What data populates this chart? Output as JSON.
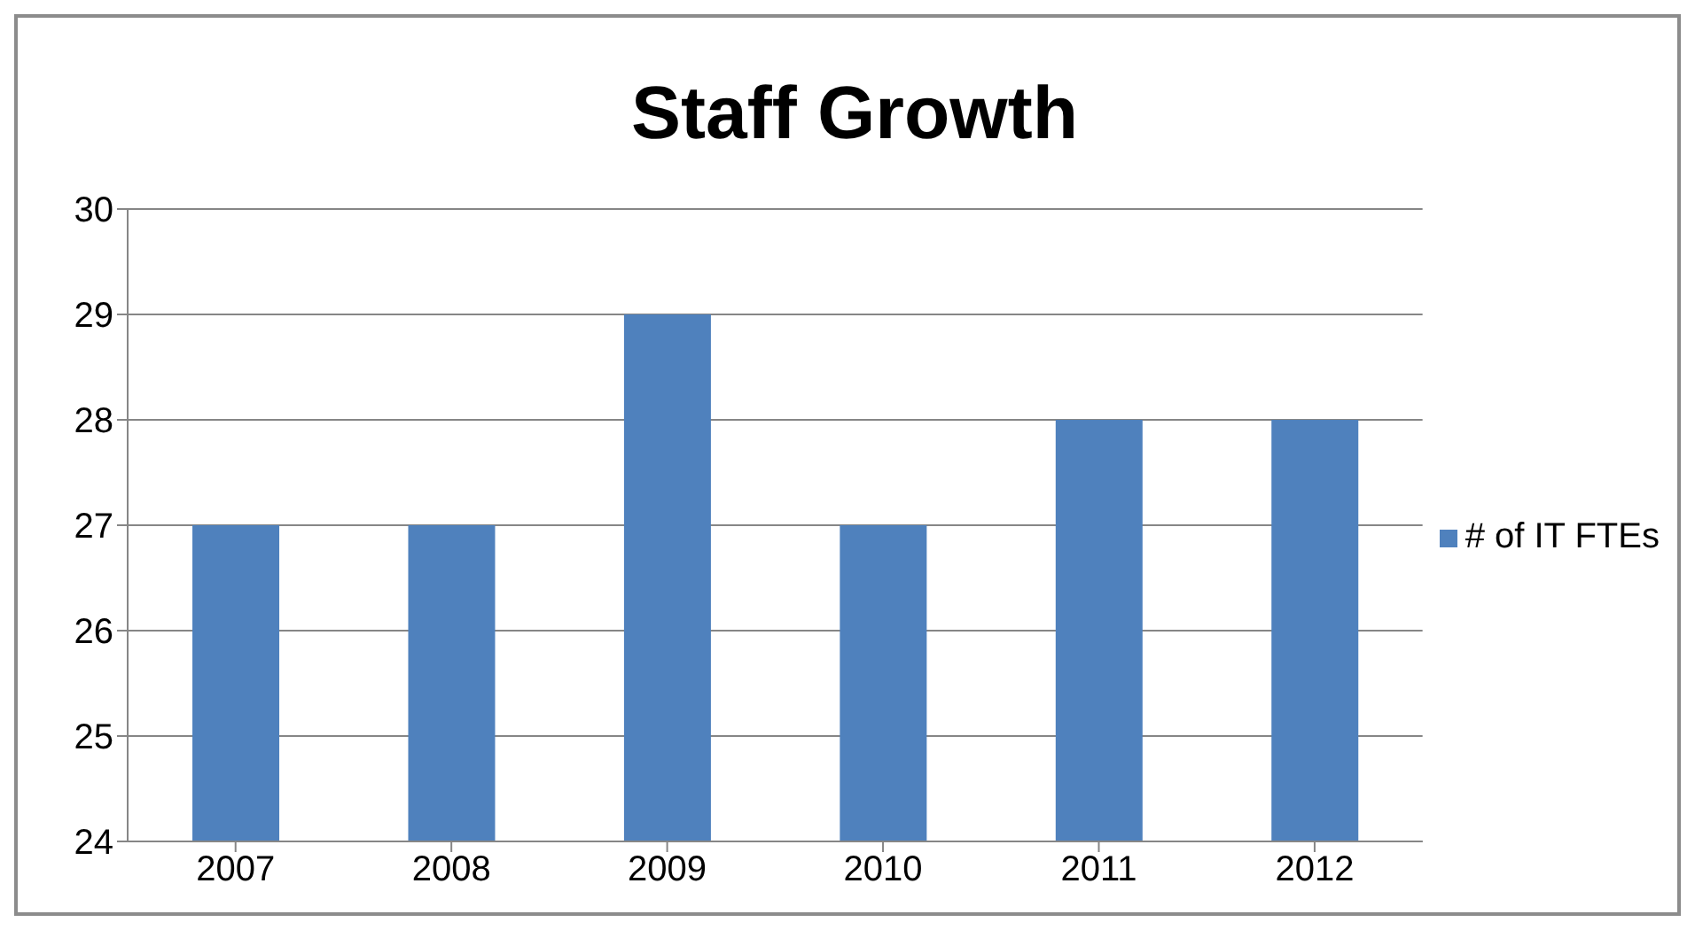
{
  "chart_data": {
    "type": "bar",
    "title": "Staff Growth",
    "categories": [
      "2007",
      "2008",
      "2009",
      "2010",
      "2011",
      "2012"
    ],
    "series": [
      {
        "name": "# of IT FTEs",
        "color": "#4f81bd",
        "values": [
          27,
          27,
          29,
          27,
          28,
          28
        ]
      }
    ],
    "ylim": [
      24,
      30
    ],
    "yticks": [
      24,
      25,
      26,
      27,
      28,
      29,
      30
    ],
    "grid": "y",
    "legend": "right"
  }
}
